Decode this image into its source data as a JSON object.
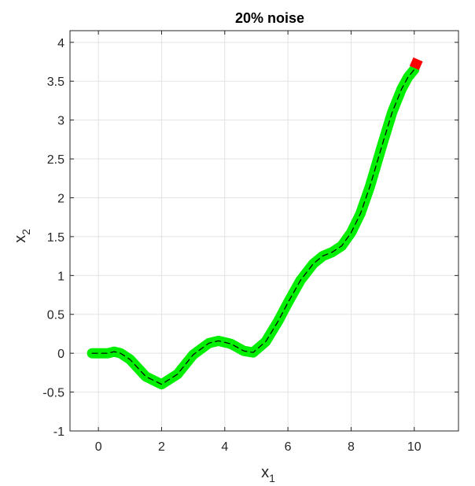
{
  "chart_data": {
    "type": "line",
    "title": "20% noise",
    "xlabel": "x",
    "xlabel_subscript": "1",
    "ylabel": "x",
    "ylabel_subscript": "2",
    "xlim": [
      -0.9,
      11.4
    ],
    "ylim": [
      -1,
      4.15
    ],
    "xticks": [
      0,
      2,
      4,
      6,
      8,
      10
    ],
    "yticks": [
      -1,
      -0.5,
      0,
      0.5,
      1,
      1.5,
      2,
      2.5,
      3,
      3.5,
      4
    ],
    "xtick_labels": [
      "0",
      "2",
      "4",
      "6",
      "8",
      "10"
    ],
    "ytick_labels": [
      "-1",
      "-0.5",
      "0",
      "0.5",
      "1",
      "1.5",
      "2",
      "2.5",
      "3",
      "3.5",
      "4"
    ],
    "grid": true,
    "series": [
      {
        "style": "thick solid",
        "color": "#00ee00",
        "x": [
          -0.2,
          0.0,
          0.3,
          0.5,
          0.7,
          1.0,
          1.5,
          2.0,
          2.5,
          3.0,
          3.5,
          3.8,
          4.2,
          4.6,
          4.9,
          5.3,
          5.7,
          6.0,
          6.4,
          6.8,
          7.1,
          7.4,
          7.7,
          8.0,
          8.3,
          8.6,
          9.0,
          9.3,
          9.6,
          9.8,
          10.0
        ],
        "y": [
          0.0,
          0.0,
          0.0,
          0.02,
          0.0,
          -0.08,
          -0.3,
          -0.4,
          -0.27,
          -0.02,
          0.13,
          0.16,
          0.12,
          0.03,
          0.01,
          0.15,
          0.42,
          0.65,
          0.94,
          1.15,
          1.25,
          1.3,
          1.38,
          1.55,
          1.8,
          2.15,
          2.7,
          3.1,
          3.4,
          3.55,
          3.65
        ]
      },
      {
        "style": "thick solid",
        "color": "#ff0000",
        "x": [
          10.0,
          10.12
        ],
        "y": [
          3.67,
          3.78
        ]
      },
      {
        "style": "dashed",
        "color": "#000000",
        "x": [
          -0.2,
          0.0,
          0.3,
          0.5,
          0.7,
          1.0,
          1.5,
          2.0,
          2.5,
          3.0,
          3.5,
          3.8,
          4.2,
          4.6,
          4.9,
          5.3,
          5.7,
          6.0,
          6.4,
          6.8,
          7.1,
          7.4,
          7.7,
          8.0,
          8.3,
          8.6,
          9.0,
          9.3,
          9.6,
          9.8,
          10.0
        ],
        "y": [
          0.0,
          0.0,
          0.0,
          0.02,
          0.0,
          -0.08,
          -0.3,
          -0.4,
          -0.27,
          -0.02,
          0.13,
          0.16,
          0.12,
          0.03,
          0.01,
          0.15,
          0.42,
          0.65,
          0.94,
          1.15,
          1.25,
          1.3,
          1.38,
          1.55,
          1.8,
          2.15,
          2.7,
          3.1,
          3.4,
          3.55,
          3.65
        ]
      }
    ]
  }
}
